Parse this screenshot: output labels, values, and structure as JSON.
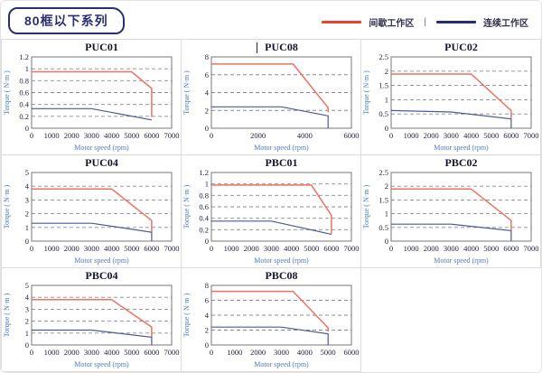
{
  "page": {
    "title_badge": "80框以下系列"
  },
  "legend": {
    "items": [
      {
        "label": "间歇工作区",
        "color": "#e8432d"
      },
      {
        "label": "连续工作区",
        "color": "#21306f"
      }
    ],
    "separator": "|"
  },
  "colors": {
    "intermittent": "#ed7260",
    "continuous": "#4a5a96",
    "grid": "#8c8c8c",
    "plot_border": "#777777"
  },
  "chart_data": [
    {
      "type": "line",
      "title": "PUC01",
      "xlabel": "Motor speed (rpm)",
      "ylabel": "Torque ( N·m )",
      "xlim": [
        0,
        7000
      ],
      "ylim": [
        0,
        1.2
      ],
      "xticks": [
        0,
        1000,
        2000,
        3000,
        4000,
        5000,
        6000,
        7000
      ],
      "yticks": [
        0,
        0.2,
        0.4,
        0.6,
        0.8,
        1,
        1.2
      ],
      "grid": "dashed-horizontal",
      "text_cursor": false,
      "series": [
        {
          "name": "间歇工作区",
          "color_key": "intermittent",
          "points": [
            [
              0,
              0.95
            ],
            [
              5000,
              0.95
            ],
            [
              6000,
              0.67
            ],
            [
              6000,
              0.19
            ]
          ]
        },
        {
          "name": "连续工作区",
          "color_key": "continuous",
          "points": [
            [
              0,
              0.33
            ],
            [
              3000,
              0.33
            ],
            [
              6000,
              0.14
            ]
          ]
        }
      ]
    },
    {
      "type": "line",
      "title": "PUC08",
      "xlabel": "Motor speed (rpm)",
      "ylabel": "Torque ( N·m )",
      "xlim": [
        0,
        6000
      ],
      "ylim": [
        0,
        8
      ],
      "xticks": [
        0,
        2000,
        4000,
        6000
      ],
      "yticks": [
        0,
        2,
        4,
        6,
        8
      ],
      "grid": "dashed-horizontal",
      "text_cursor": true,
      "series": [
        {
          "name": "间歇工作区",
          "color_key": "intermittent",
          "points": [
            [
              0,
              7.2
            ],
            [
              3500,
              7.2
            ],
            [
              5000,
              2.3
            ],
            [
              5000,
              1.8
            ]
          ]
        },
        {
          "name": "连续工作区",
          "color_key": "continuous",
          "points": [
            [
              0,
              2.4
            ],
            [
              3000,
              2.4
            ],
            [
              5000,
              1.4
            ],
            [
              5000,
              0
            ]
          ]
        }
      ]
    },
    {
      "type": "line",
      "title": "PUC02",
      "xlabel": "Motor speed (rpm)",
      "ylabel": "Torque ( N·m )",
      "xlim": [
        0,
        7000
      ],
      "ylim": [
        0,
        2.5
      ],
      "xticks": [
        0,
        1000,
        2000,
        3000,
        4000,
        5000,
        6000,
        7000
      ],
      "yticks": [
        0,
        0.5,
        1,
        1.5,
        2,
        2.5
      ],
      "grid": "dashed-horizontal",
      "text_cursor": false,
      "series": [
        {
          "name": "间歇工作区",
          "color_key": "intermittent",
          "points": [
            [
              0,
              1.9
            ],
            [
              4000,
              1.9
            ],
            [
              6000,
              0.62
            ],
            [
              6000,
              0.35
            ]
          ]
        },
        {
          "name": "连续工作区",
          "color_key": "continuous",
          "points": [
            [
              0,
              0.62
            ],
            [
              3000,
              0.57
            ],
            [
              6000,
              0.33
            ],
            [
              6000,
              0
            ]
          ]
        }
      ]
    },
    {
      "type": "line",
      "title": "PUC04",
      "xlabel": "Motor speed (rpm)",
      "ylabel": "Torque ( N·m )",
      "xlim": [
        0,
        7000
      ],
      "ylim": [
        0,
        5
      ],
      "xticks": [
        0,
        1000,
        2000,
        3000,
        4000,
        5000,
        6000,
        7000
      ],
      "yticks": [
        0,
        1,
        2,
        3,
        4,
        5
      ],
      "grid": "dashed-horizontal",
      "text_cursor": false,
      "series": [
        {
          "name": "间歇工作区",
          "color_key": "intermittent",
          "points": [
            [
              0,
              3.8
            ],
            [
              4000,
              3.8
            ],
            [
              6000,
              1.5
            ],
            [
              6000,
              0.65
            ]
          ]
        },
        {
          "name": "连续工作区",
          "color_key": "continuous",
          "points": [
            [
              0,
              1.3
            ],
            [
              3000,
              1.3
            ],
            [
              6000,
              0.65
            ],
            [
              6000,
              0
            ]
          ]
        }
      ]
    },
    {
      "type": "line",
      "title": "PBC01",
      "xlabel": "Motor speed (rpm)",
      "ylabel": "Torque ( N·m )",
      "xlim": [
        0,
        7000
      ],
      "ylim": [
        0,
        1.2
      ],
      "xticks": [
        0,
        1000,
        2000,
        3000,
        4000,
        5000,
        6000,
        7000
      ],
      "yticks": [
        0,
        0.2,
        0.4,
        0.6,
        0.8,
        1,
        1.2
      ],
      "grid": "dashed-horizontal",
      "text_cursor": false,
      "series": [
        {
          "name": "间歇工作区",
          "color_key": "intermittent",
          "points": [
            [
              0,
              0.98
            ],
            [
              5000,
              0.98
            ],
            [
              6000,
              0.45
            ],
            [
              6000,
              0.13
            ]
          ]
        },
        {
          "name": "连续工作区",
          "color_key": "continuous",
          "points": [
            [
              0,
              0.35
            ],
            [
              3000,
              0.35
            ],
            [
              6000,
              0.12
            ]
          ]
        }
      ]
    },
    {
      "type": "line",
      "title": "PBC02",
      "xlabel": "Motor speed (rpm)",
      "ylabel": "Torque ( N·m )",
      "xlim": [
        0,
        7000
      ],
      "ylim": [
        0,
        2.5
      ],
      "xticks": [
        0,
        1000,
        2000,
        3000,
        4000,
        5000,
        6000,
        7000
      ],
      "yticks": [
        0,
        0.5,
        1,
        1.5,
        2,
        2.5
      ],
      "grid": "dashed-horizontal",
      "text_cursor": false,
      "series": [
        {
          "name": "间歇工作区",
          "color_key": "intermittent",
          "points": [
            [
              0,
              1.9
            ],
            [
              4000,
              1.9
            ],
            [
              6000,
              0.75
            ],
            [
              6000,
              0.4
            ]
          ]
        },
        {
          "name": "连续工作区",
          "color_key": "continuous",
          "points": [
            [
              0,
              0.62
            ],
            [
              3000,
              0.62
            ],
            [
              6000,
              0.38
            ],
            [
              6000,
              0
            ]
          ]
        }
      ]
    },
    {
      "type": "line",
      "title": "PBC04",
      "xlabel": "Motor speed (rpm)",
      "ylabel": "Torque ( N·m )",
      "xlim": [
        0,
        7000
      ],
      "ylim": [
        0,
        5
      ],
      "xticks": [
        0,
        1000,
        2000,
        3000,
        4000,
        5000,
        6000,
        7000
      ],
      "yticks": [
        0,
        1,
        2,
        3,
        4,
        5
      ],
      "grid": "dashed-horizontal",
      "text_cursor": false,
      "series": [
        {
          "name": "间歇工作区",
          "color_key": "intermittent",
          "points": [
            [
              0,
              3.8
            ],
            [
              4000,
              3.8
            ],
            [
              6000,
              1.5
            ],
            [
              6000,
              0.65
            ]
          ]
        },
        {
          "name": "连续工作区",
          "color_key": "continuous",
          "points": [
            [
              0,
              1.25
            ],
            [
              3000,
              1.25
            ],
            [
              6000,
              0.65
            ],
            [
              6000,
              0
            ]
          ]
        }
      ]
    },
    {
      "type": "line",
      "title": "PBC08",
      "xlabel": "Motor speed (rpm)",
      "ylabel": "Torque ( N·m )",
      "xlim": [
        0,
        6000
      ],
      "ylim": [
        0,
        8
      ],
      "xticks": [
        0,
        1000,
        2000,
        3000,
        4000,
        5000,
        6000
      ],
      "yticks": [
        0,
        2,
        4,
        6,
        8
      ],
      "grid": "dashed-horizontal",
      "text_cursor": false,
      "series": [
        {
          "name": "间歇工作区",
          "color_key": "intermittent",
          "points": [
            [
              0,
              7.2
            ],
            [
              3500,
              7.2
            ],
            [
              5000,
              2.3
            ],
            [
              5000,
              1.8
            ]
          ]
        },
        {
          "name": "连续工作区",
          "color_key": "continuous",
          "points": [
            [
              0,
              2.4
            ],
            [
              3000,
              2.4
            ],
            [
              5000,
              1.5
            ],
            [
              5000,
              0
            ]
          ]
        }
      ]
    }
  ]
}
